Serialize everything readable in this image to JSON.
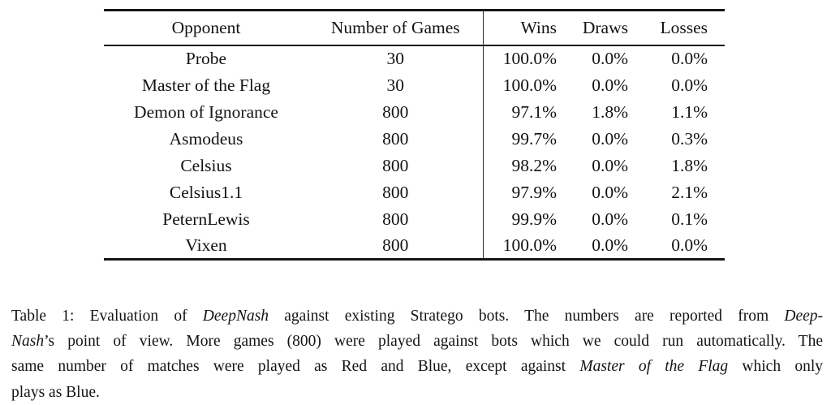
{
  "table": {
    "columns": [
      "Opponent",
      "Number of Games",
      "Wins",
      "Draws",
      "Losses"
    ],
    "rows": [
      {
        "opponent": "Probe",
        "games": "30",
        "wins": "100.0%",
        "draws": "0.0%",
        "losses": "0.0%"
      },
      {
        "opponent": "Master of the Flag",
        "games": "30",
        "wins": "100.0%",
        "draws": "0.0%",
        "losses": "0.0%"
      },
      {
        "opponent": "Demon of Ignorance",
        "games": "800",
        "wins": "97.1%",
        "draws": "1.8%",
        "losses": "1.1%"
      },
      {
        "opponent": "Asmodeus",
        "games": "800",
        "wins": "99.7%",
        "draws": "0.0%",
        "losses": "0.3%"
      },
      {
        "opponent": "Celsius",
        "games": "800",
        "wins": "98.2%",
        "draws": "0.0%",
        "losses": "1.8%"
      },
      {
        "opponent": "Celsius1.1",
        "games": "800",
        "wins": "97.9%",
        "draws": "0.0%",
        "losses": "2.1%"
      },
      {
        "opponent": "PeternLewis",
        "games": "800",
        "wins": "99.9%",
        "draws": "0.0%",
        "losses": "0.1%"
      },
      {
        "opponent": "Vixen",
        "games": "800",
        "wins": "100.0%",
        "draws": "0.0%",
        "losses": "0.0%"
      }
    ]
  },
  "caption": {
    "lines": [
      [
        {
          "t": "Table 1: Evaluation of "
        },
        {
          "t": "DeepNash",
          "i": true
        },
        {
          "t": " against existing Stratego bots. The numbers are reported from "
        },
        {
          "t": "Deep-",
          "i": true
        }
      ],
      [
        {
          "t": "Nash",
          "i": true
        },
        {
          "t": "’s point of view. More games (800) were played against bots which we could run automatically. The"
        }
      ],
      [
        {
          "t": "same number of matches were played as Red and Blue, except against "
        },
        {
          "t": "Master of the Flag",
          "i": true
        },
        {
          "t": " which only"
        }
      ],
      [
        {
          "t": "plays as Blue."
        }
      ]
    ]
  },
  "colors": {
    "background": "#ffffff",
    "text": "#121212",
    "rule": "#161616"
  }
}
